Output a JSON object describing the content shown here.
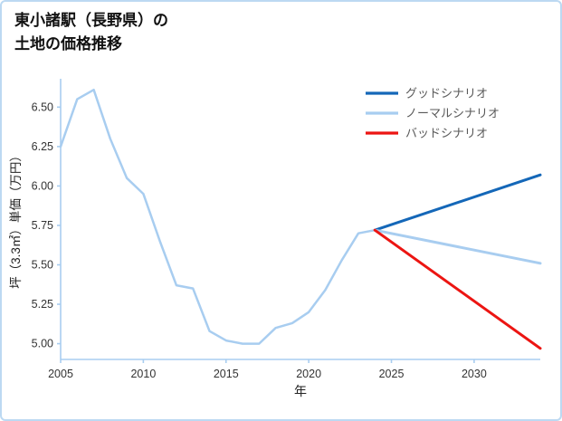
{
  "header": {
    "title_line1": "東小諸駅（長野県）の",
    "title_line2": "土地の価格推移"
  },
  "chart_data": {
    "type": "line",
    "title": "東小諸駅（長野県）の土地の価格推移",
    "xlabel": "年",
    "ylabel": "坪（3.3㎡）単価（万円）",
    "xlim": [
      2005,
      2034
    ],
    "ylim": [
      4.9,
      6.68
    ],
    "xticks": [
      2005,
      2010,
      2015,
      2020,
      2025,
      2030
    ],
    "yticks": [
      5.0,
      5.25,
      5.5,
      5.75,
      6.0,
      6.25,
      6.5
    ],
    "grid": false,
    "legend_position": "top-right",
    "colors": {
      "good": "#1467b8",
      "normal": "#a8cdf0",
      "bad": "#ec1512",
      "axis": "#a8cdf0",
      "tick_text": "#333333",
      "label_text": "#222222",
      "legend_text": "#595959"
    },
    "legend": [
      {
        "label": "グッドシナリオ",
        "series": "good"
      },
      {
        "label": "ノーマルシナリオ",
        "series": "normal"
      },
      {
        "label": "バッドシナリオ",
        "series": "bad"
      }
    ],
    "series": [
      {
        "name": "history",
        "color_key": "normal",
        "width": 2.5,
        "x": [
          2005,
          2006,
          2007,
          2008,
          2009,
          2010,
          2011,
          2012,
          2013,
          2014,
          2015,
          2016,
          2017,
          2018,
          2019,
          2020,
          2021,
          2022,
          2023,
          2024
        ],
        "y": [
          6.25,
          6.55,
          6.61,
          6.3,
          6.05,
          5.95,
          5.65,
          5.37,
          5.35,
          5.08,
          5.02,
          5.0,
          5.0,
          5.1,
          5.13,
          5.2,
          5.34,
          5.53,
          5.7,
          5.72
        ]
      },
      {
        "name": "good-scenario",
        "color_key": "good",
        "width": 3,
        "x": [
          2024,
          2034
        ],
        "y": [
          5.72,
          6.07
        ]
      },
      {
        "name": "normal-scenario",
        "color_key": "normal",
        "width": 3,
        "x": [
          2024,
          2034
        ],
        "y": [
          5.72,
          5.51
        ]
      },
      {
        "name": "bad-scenario",
        "color_key": "bad",
        "width": 3,
        "x": [
          2024,
          2034
        ],
        "y": [
          5.72,
          4.97
        ]
      }
    ]
  }
}
